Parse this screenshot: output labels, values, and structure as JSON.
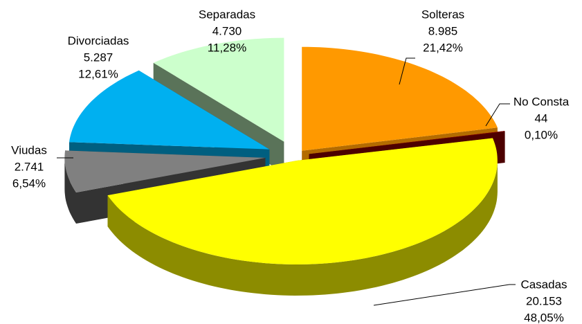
{
  "chart_data": {
    "type": "pie3d",
    "categories": [
      "Solteras",
      "No Consta",
      "Casadas",
      "Viudas",
      "Divorciadas",
      "Separadas"
    ],
    "values": [
      8985,
      44,
      20153,
      2741,
      5287,
      4730
    ],
    "value_labels": [
      "8.985",
      "44",
      "20.153",
      "2.741",
      "5.287",
      "4.730"
    ],
    "percents": [
      21.42,
      0.1,
      48.05,
      6.54,
      12.61,
      11.28
    ],
    "percent_labels": [
      "21,42%",
      "0,10%",
      "48,05%",
      "6,54%",
      "12,61%",
      "11,28%"
    ],
    "colors": [
      "#ff9900",
      "#800000",
      "#ffff00",
      "#808080",
      "#00b0f0",
      "#ccffcc"
    ],
    "side_colors": [
      "#b36b00",
      "#4d0000",
      "#8c8c00",
      "#333333",
      "#005f80",
      "#5a7359"
    ]
  }
}
